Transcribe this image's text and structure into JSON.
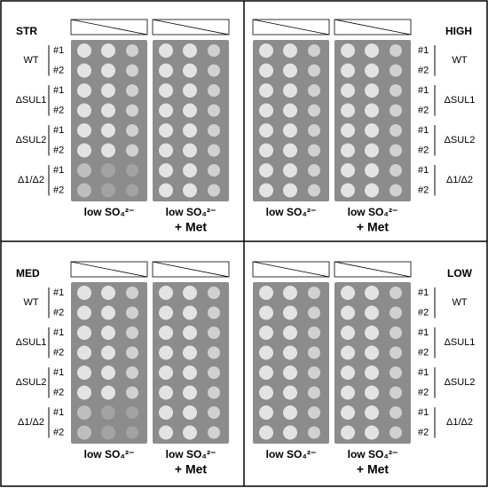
{
  "figure": {
    "panels": [
      {
        "label": "STR",
        "plates": [
          {
            "caption": "low SO₄²⁻"
          },
          {
            "caption": "low SO₄²⁻",
            "caption_2": "+ Met"
          }
        ],
        "groups": [
          {
            "name": "WT",
            "replicates": [
              "#1",
              "#2"
            ]
          },
          {
            "name": "ΔSUL1",
            "replicates": [
              "#1",
              "#2"
            ]
          },
          {
            "name": "ΔSUL2",
            "replicates": [
              "#1",
              "#2"
            ]
          },
          {
            "name": "Δ1/Δ2",
            "replicates": [
              "#1",
              "#2"
            ]
          }
        ]
      },
      {
        "label": "HIGH",
        "plates": [
          {
            "caption": "low SO₄²⁻"
          },
          {
            "caption": "low SO₄²⁻",
            "caption_2": "+ Met"
          }
        ],
        "groups": [
          {
            "name": "WT",
            "replicates": [
              "#1",
              "#2"
            ]
          },
          {
            "name": "ΔSUL1",
            "replicates": [
              "#1",
              "#2"
            ]
          },
          {
            "name": "ΔSUL2",
            "replicates": [
              "#1",
              "#2"
            ]
          },
          {
            "name": "Δ1/Δ2",
            "replicates": [
              "#1",
              "#2"
            ]
          }
        ]
      },
      {
        "label": "MED",
        "plates": [
          {
            "caption": "low SO₄²⁻"
          },
          {
            "caption": "low SO₄²⁻",
            "caption_2": "+ Met"
          }
        ],
        "groups": [
          {
            "name": "WT",
            "replicates": [
              "#1",
              "#2"
            ]
          },
          {
            "name": "ΔSUL1",
            "replicates": [
              "#1",
              "#2"
            ]
          },
          {
            "name": "ΔSUL2",
            "replicates": [
              "#1",
              "#2"
            ]
          },
          {
            "name": "Δ1/Δ2",
            "replicates": [
              "#1",
              "#2"
            ]
          }
        ]
      },
      {
        "label": "LOW",
        "plates": [
          {
            "caption": "low SO₄²⁻"
          },
          {
            "caption": "low SO₄²⁻",
            "caption_2": "+ Met"
          }
        ],
        "groups": [
          {
            "name": "WT",
            "replicates": [
              "#1",
              "#2"
            ]
          },
          {
            "name": "ΔSUL1",
            "replicates": [
              "#1",
              "#2"
            ]
          },
          {
            "name": "ΔSUL2",
            "replicates": [
              "#1",
              "#2"
            ]
          },
          {
            "name": "Δ1/Δ2",
            "replicates": [
              "#1",
              "#2"
            ]
          }
        ]
      }
    ]
  }
}
